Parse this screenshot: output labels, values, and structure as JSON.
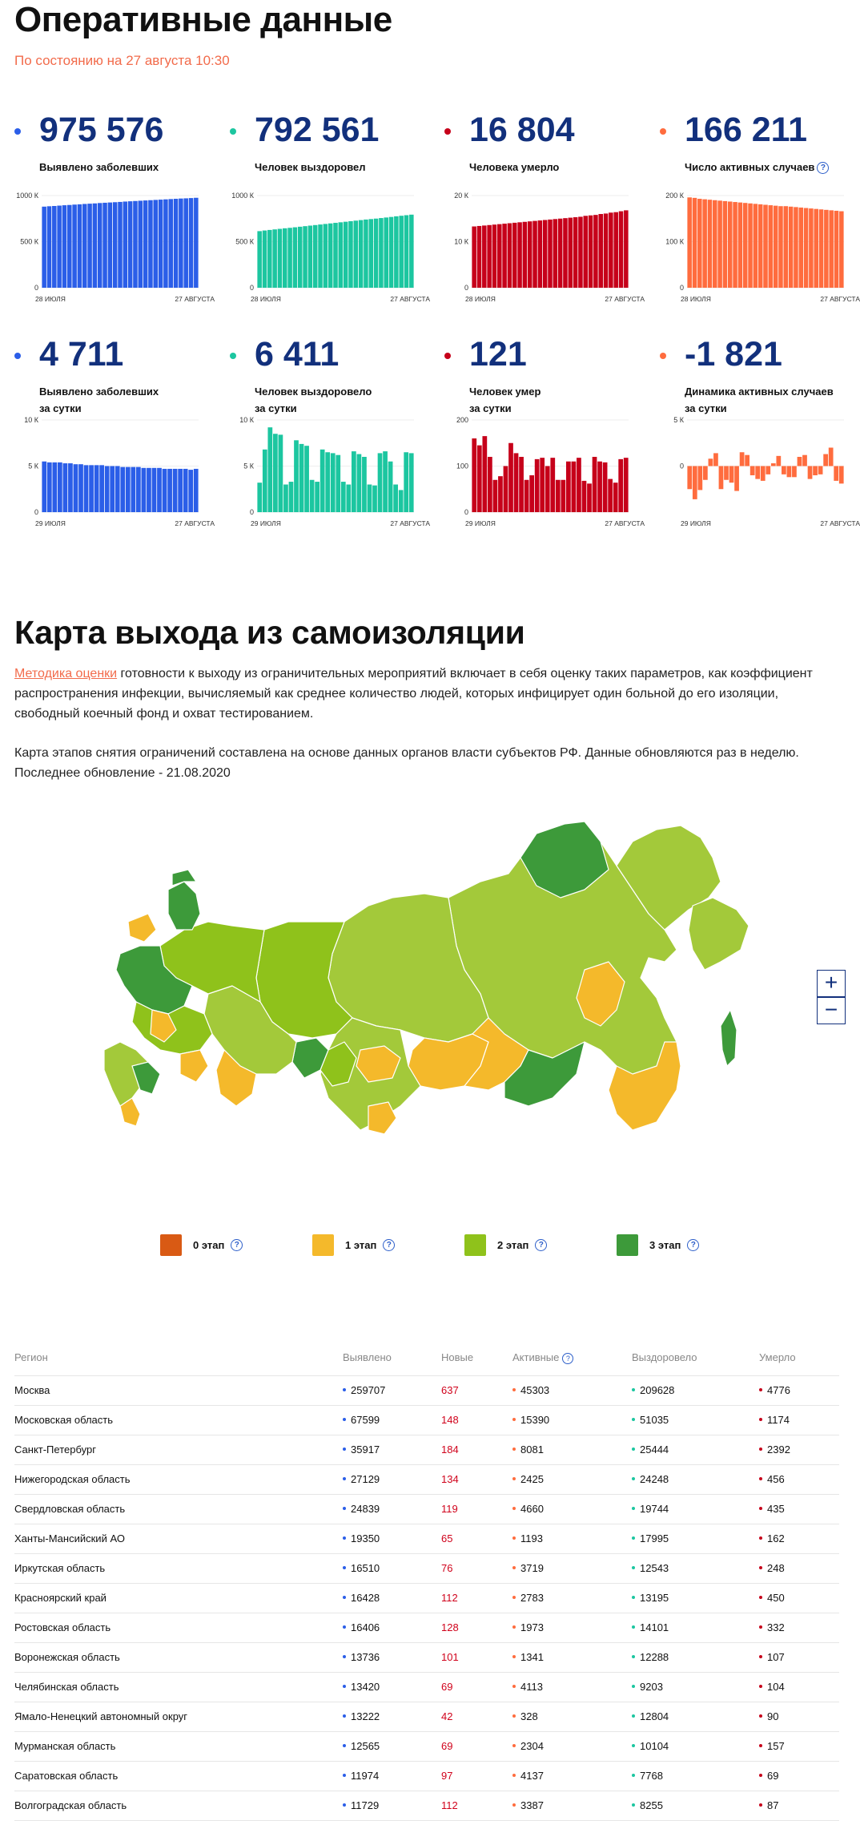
{
  "header": {
    "title": "Оперативные данные",
    "subtitle": "По состоянию на 27 августа 10:30"
  },
  "stats": [
    {
      "value": "975 576",
      "label": "Выявлено заболевших",
      "color": "#2b5ee8",
      "help": false,
      "ymax": 1000,
      "ticks": [
        "1000 К",
        "500 К",
        "0"
      ],
      "xstart": "28 ИЮЛЯ",
      "xend": "27 АВГУСТА",
      "series": [
        880,
        884,
        887,
        891,
        895,
        898,
        902,
        905,
        909,
        912,
        915,
        919,
        922,
        925,
        928,
        931,
        935,
        938,
        941,
        944,
        947,
        950,
        953,
        956,
        959,
        962,
        965,
        968,
        970,
        973,
        976
      ]
    },
    {
      "value": "792 561",
      "label": "Человек выздоровел",
      "color": "#1cc6a0",
      "help": false,
      "ymax": 1000,
      "ticks": [
        "1000 К",
        "500 К",
        "0"
      ],
      "xstart": "28 ИЮЛЯ",
      "xend": "27 АВГУСТА",
      "series": [
        614,
        621,
        627,
        633,
        639,
        645,
        650,
        656,
        662,
        668,
        674,
        680,
        686,
        692,
        698,
        704,
        710,
        716,
        722,
        728,
        734,
        740,
        745,
        750,
        756,
        762,
        768,
        775,
        781,
        787,
        793
      ]
    },
    {
      "value": "16 804",
      "label": "Человека умерло",
      "color": "#c6001a",
      "help": false,
      "ymax": 20,
      "ticks": [
        "20 К",
        "10 К",
        "0"
      ],
      "xstart": "28 ИЮЛЯ",
      "xend": "27 АВГУСТА",
      "series": [
        13.3,
        13.4,
        13.5,
        13.6,
        13.7,
        13.8,
        13.9,
        14.0,
        14.1,
        14.2,
        14.3,
        14.4,
        14.5,
        14.6,
        14.7,
        14.8,
        14.9,
        15.0,
        15.1,
        15.2,
        15.3,
        15.4,
        15.6,
        15.7,
        15.8,
        16.0,
        16.1,
        16.3,
        16.4,
        16.6,
        16.8
      ]
    },
    {
      "value": "166 211",
      "label": "Число активных случаев",
      "color": "#ff6c3e",
      "help": true,
      "ymax": 200,
      "ticks": [
        "200 К",
        "100 К",
        "0"
      ],
      "xstart": "28 ИЮЛЯ",
      "xend": "27 АВГУСТА",
      "series": [
        196,
        195,
        193,
        192,
        191,
        190,
        189,
        188,
        187,
        186,
        185,
        184,
        183,
        182,
        181,
        180,
        179,
        178,
        177,
        177,
        176,
        175,
        174,
        173,
        172,
        171,
        170,
        169,
        168,
        167,
        166
      ]
    },
    {
      "value": "4 711",
      "label": "Выявлено заболевших\nза сутки",
      "color": "#2b5ee8",
      "help": false,
      "ymax": 10,
      "ticks": [
        "10 К",
        "5 К",
        "0"
      ],
      "xstart": "29 ИЮЛЯ",
      "xend": "27 АВГУСТА",
      "series": [
        5.5,
        5.4,
        5.4,
        5.4,
        5.3,
        5.3,
        5.2,
        5.2,
        5.1,
        5.1,
        5.1,
        5.1,
        5.0,
        5.0,
        5.0,
        4.9,
        4.9,
        4.9,
        4.9,
        4.8,
        4.8,
        4.8,
        4.8,
        4.7,
        4.7,
        4.7,
        4.7,
        4.7,
        4.6,
        4.7
      ]
    },
    {
      "value": "6 411",
      "label": "Человек выздоровело\nза сутки",
      "color": "#1cc6a0",
      "help": false,
      "ymax": 10,
      "ticks": [
        "10 К",
        "5 К",
        "0"
      ],
      "xstart": "29 ИЮЛЯ",
      "xend": "27 АВГУСТА",
      "series": [
        3.2,
        6.8,
        9.2,
        8.5,
        8.4,
        3.0,
        3.3,
        7.8,
        7.4,
        7.2,
        3.5,
        3.3,
        6.8,
        6.5,
        6.4,
        6.2,
        3.3,
        3.0,
        6.6,
        6.3,
        6.0,
        3.0,
        2.9,
        6.4,
        6.6,
        5.5,
        3.0,
        2.4,
        6.5,
        6.4
      ]
    },
    {
      "value": "121",
      "label": "Человек умер\nза сутки",
      "color": "#c6001a",
      "help": false,
      "ymax": 200,
      "ticks": [
        "200",
        "100",
        "0"
      ],
      "xstart": "29 ИЮЛЯ",
      "xend": "27 АВГУСТА",
      "series": [
        160,
        145,
        165,
        120,
        70,
        78,
        100,
        150,
        128,
        120,
        70,
        80,
        115,
        118,
        100,
        118,
        70,
        70,
        110,
        110,
        118,
        68,
        62,
        120,
        110,
        108,
        72,
        64,
        115,
        118
      ]
    },
    {
      "value": "-1 821",
      "label": "Динамика активных случаев\nза сутки",
      "color": "#ff6c3e",
      "help": false,
      "ymax": 5,
      "ymin": -5,
      "ticks": [
        "5 К",
        "0",
        ""
      ],
      "xstart": "29 ИЮЛЯ",
      "xend": "27 АВГУСТА",
      "series": [
        -2.5,
        -3.6,
        -2.6,
        -1.5,
        0.8,
        1.4,
        -2.5,
        -1.5,
        -1.8,
        -2.7,
        1.5,
        1.2,
        -1.0,
        -1.4,
        -1.6,
        -0.9,
        0.3,
        1.1,
        -0.9,
        -1.2,
        -1.2,
        1.0,
        1.2,
        -1.4,
        -1.0,
        -0.9,
        1.3,
        2.0,
        -1.6,
        -1.9
      ]
    }
  ],
  "map_section": {
    "title": "Карта выхода из самоизоляции",
    "p1_link": "Методика оценки",
    "p1_rest": " готовности к выходу из ограничительных мероприятий включает в себя оценку таких параметров, как коэффициент распространения инфекции, вычисляемый как среднее количество людей, которых инфицирует один больной до его изоляции, свободный коечный фонд и охват тестированием.",
    "p2": "Карта этапов снятия ограничений составлена на основе данных органов власти субъектов РФ. Данные обновляются раз в неделю.",
    "p3": "Последнее обновление - 21.08.2020",
    "zoom_in": "+",
    "zoom_out": "−",
    "legend": [
      {
        "label": "0 этап",
        "color": "#d95a14"
      },
      {
        "label": "1 этап",
        "color": "#f4b92b"
      },
      {
        "label": "2 этап",
        "color": "#8fc21b"
      },
      {
        "label": "3 этап",
        "color": "#3d9a3a"
      }
    ]
  },
  "table": {
    "headers": [
      "Регион",
      "Выявлено",
      "Новые",
      "Активные",
      "Выздоровело",
      "Умерло"
    ],
    "rows": [
      [
        "Москва",
        "259707",
        "637",
        "45303",
        "209628",
        "4776"
      ],
      [
        "Московская область",
        "67599",
        "148",
        "15390",
        "51035",
        "1174"
      ],
      [
        "Санкт-Петербург",
        "35917",
        "184",
        "8081",
        "25444",
        "2392"
      ],
      [
        "Нижегородская область",
        "27129",
        "134",
        "2425",
        "24248",
        "456"
      ],
      [
        "Свердловская область",
        "24839",
        "119",
        "4660",
        "19744",
        "435"
      ],
      [
        "Ханты-Мансийский АО",
        "19350",
        "65",
        "1193",
        "17995",
        "162"
      ],
      [
        "Иркутская область",
        "16510",
        "76",
        "3719",
        "12543",
        "248"
      ],
      [
        "Красноярский край",
        "16428",
        "112",
        "2783",
        "13195",
        "450"
      ],
      [
        "Ростовская область",
        "16406",
        "128",
        "1973",
        "14101",
        "332"
      ],
      [
        "Воронежская область",
        "13736",
        "101",
        "1341",
        "12288",
        "107"
      ],
      [
        "Челябинская область",
        "13420",
        "69",
        "4113",
        "9203",
        "104"
      ],
      [
        "Ямало-Ненецкий автономный округ",
        "13222",
        "42",
        "328",
        "12804",
        "90"
      ],
      [
        "Мурманская область",
        "12565",
        "69",
        "2304",
        "10104",
        "157"
      ],
      [
        "Саратовская область",
        "11974",
        "97",
        "4137",
        "7768",
        "69"
      ],
      [
        "Волгоградская область",
        "11729",
        "112",
        "3387",
        "8255",
        "87"
      ]
    ]
  }
}
